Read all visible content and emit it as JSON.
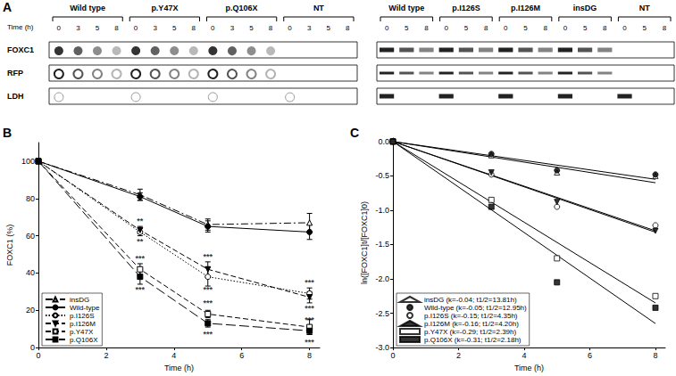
{
  "blot": {
    "title": "A",
    "time_label": "Time (h)",
    "rows": [
      "FOXC1",
      "RFP",
      "LDH"
    ],
    "panels": [
      {
        "groups": [
          {
            "name": "Wild type",
            "times": [
              0,
              3,
              5,
              8
            ]
          },
          {
            "name": "p.Y47X",
            "times": [
              0,
              3,
              5,
              8
            ]
          },
          {
            "name": "p.Q106X",
            "times": [
              0,
              3,
              5,
              8
            ]
          },
          {
            "name": "NT",
            "times": [
              0,
              3,
              5,
              8
            ]
          }
        ]
      },
      {
        "groups": [
          {
            "name": "Wild type",
            "times": [
              0,
              5,
              8
            ]
          },
          {
            "name": "p.I126S",
            "times": [
              0,
              5,
              8
            ]
          },
          {
            "name": "p.I126M",
            "times": [
              0,
              5,
              8
            ]
          },
          {
            "name": "insDG",
            "times": [
              0,
              5,
              8
            ]
          },
          {
            "name": "NT",
            "times": [
              0,
              5,
              8
            ]
          }
        ]
      }
    ]
  },
  "chart_data": [
    {
      "type": "line",
      "title": "B",
      "x_label": "Time (h)",
      "y_label": "FOXC1 (%)",
      "x": [
        0,
        3,
        5,
        8
      ],
      "xlim": [
        0,
        8.3
      ],
      "xticks": [
        0,
        2,
        4,
        6,
        8
      ],
      "ylim": [
        0,
        110
      ],
      "yticks": [
        0,
        20,
        40,
        60,
        80,
        100
      ],
      "grid": false,
      "legend": "lower left",
      "series": [
        {
          "name": "insDG",
          "color": "#000000",
          "marker": "triangle-open",
          "line_style": "dashdot",
          "values": [
            100,
            82,
            66,
            67
          ],
          "errors": [
            0,
            3,
            3,
            5
          ]
        },
        {
          "name": "Wild-type",
          "color": "#000000",
          "marker": "circle",
          "line_style": "solid",
          "values": [
            100,
            81,
            65,
            62
          ],
          "errors": [
            0,
            2,
            3,
            4
          ]
        },
        {
          "name": "p.I126S",
          "color": "#000000",
          "marker": "circle-open",
          "line_style": "dotted",
          "values": [
            100,
            62,
            38,
            29
          ],
          "errors": [
            0,
            2,
            5,
            3
          ]
        },
        {
          "name": "p.I126M",
          "color": "#000000",
          "marker": "triangle-down",
          "line_style": "dashed",
          "values": [
            100,
            63,
            42,
            27
          ],
          "errors": [
            0,
            2,
            4,
            3
          ]
        },
        {
          "name": "p.Y47X",
          "color": "#000000",
          "marker": "square-open",
          "line_style": "dashed",
          "values": [
            100,
            42,
            18,
            11
          ],
          "errors": [
            0,
            3,
            2,
            4
          ]
        },
        {
          "name": "p.Q106X",
          "color": "#000000",
          "marker": "square",
          "line_style": "longdash",
          "values": [
            100,
            38,
            13,
            9
          ],
          "errors": [
            0,
            4,
            2,
            2
          ]
        }
      ],
      "annotations": [
        {
          "text": "**",
          "x": 3,
          "y": 68
        },
        {
          "text": "**",
          "x": 3,
          "y": 57
        },
        {
          "text": "***",
          "x": 3,
          "y": 48
        },
        {
          "text": "***",
          "x": 3,
          "y": 31
        },
        {
          "text": "***",
          "x": 5,
          "y": 49
        },
        {
          "text": "***",
          "x": 5,
          "y": 31
        },
        {
          "text": "***",
          "x": 5,
          "y": 24
        },
        {
          "text": "***",
          "x": 5,
          "y": 7
        },
        {
          "text": "***",
          "x": 8,
          "y": 35
        },
        {
          "text": "***",
          "x": 8,
          "y": 21
        },
        {
          "text": "***",
          "x": 8,
          "y": 15
        },
        {
          "text": "***",
          "x": 8,
          "y": 3
        }
      ]
    },
    {
      "type": "scatter",
      "title": "C",
      "x_label": "Time (h)",
      "y_label": "ln([FOXC1]t/[FOXC1]0)",
      "x": [
        0,
        3,
        5,
        8
      ],
      "fit_x": [
        0,
        8
      ],
      "xlim": [
        0,
        8.3
      ],
      "xticks": [
        0,
        2,
        4,
        6,
        8
      ],
      "ylim": [
        -3,
        0.05
      ],
      "yticks": [
        {
          "value": -3,
          "label": "-3.0"
        },
        -2.5,
        {
          "value": -2,
          "label": "-2.0"
        },
        -1.5,
        {
          "value": -1,
          "label": "-1.0"
        },
        -0.5,
        {
          "value": 0,
          "label": "0.0"
        }
      ],
      "grid": false,
      "legend": "lower left",
      "series": [
        {
          "name": "insDG (k=-0.04; t1/2=13.81h)",
          "color": "#000000",
          "marker": "triangle-open",
          "values": [
            0,
            -0.2,
            -0.45,
            -0.5
          ],
          "fit": [
            0,
            -0.55
          ]
        },
        {
          "name": "Wild-type (k=-0.05; t1/2=12.95h)",
          "color": "#000000",
          "marker": "circle",
          "values": [
            0,
            -0.18,
            -0.42,
            -0.48
          ],
          "fit": [
            0,
            -0.6
          ]
        },
        {
          "name": "p.I126S (k=-0.15; t1/2=4.35h)",
          "color": "#000000",
          "marker": "circle-open",
          "values": [
            0,
            -0.48,
            -0.95,
            -1.22
          ],
          "fit": [
            0,
            -1.3
          ]
        },
        {
          "name": "p.I126M (k=-0.16; t1/2=4.20h)",
          "color": "#000000",
          "marker": "triangle-down",
          "values": [
            0,
            -0.45,
            -0.88,
            -1.3
          ],
          "fit": [
            0,
            -1.32
          ]
        },
        {
          "name": "p.Y47X (k=-0.29; t1/2=2.39h)",
          "color": "#000000",
          "marker": "square-open",
          "values": [
            0,
            -0.85,
            -1.7,
            -2.25
          ],
          "fit": [
            0,
            -2.35
          ]
        },
        {
          "name": "p.Q106X (k=-0.31; t1/2=2.18h)",
          "color": "#000000",
          "marker": "square",
          "values": [
            0,
            -0.95,
            -2.05,
            -2.42
          ],
          "fit": [
            0,
            -2.65
          ]
        }
      ]
    }
  ]
}
